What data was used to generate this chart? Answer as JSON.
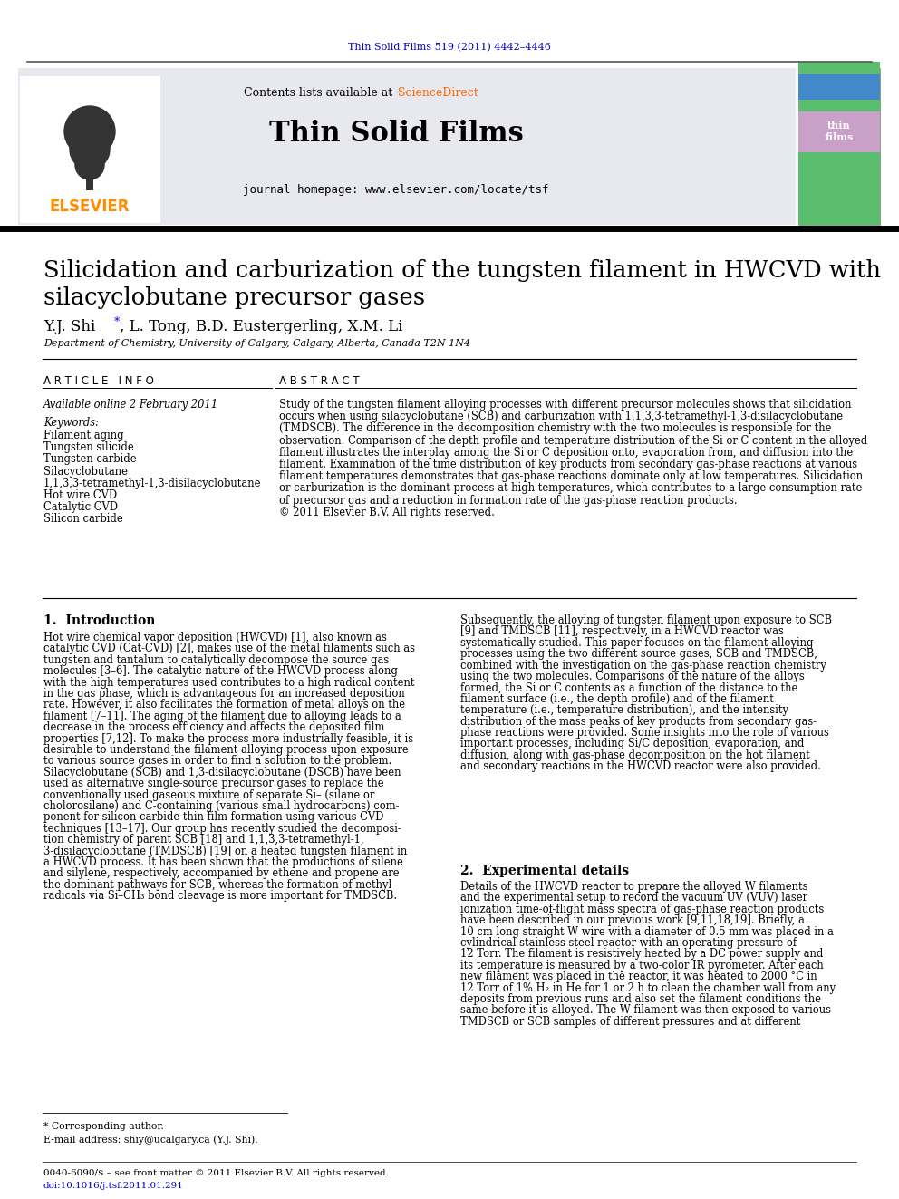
{
  "journal_ref": "Thin Solid Films 519 (2011) 4442–4446",
  "journal_ref_color": "#0000CC",
  "header_line_color": "#555555",
  "header_bg_color": "#E8E8EF",
  "header_title": "Thin Solid Films",
  "header_contents": "Contents lists available at ",
  "header_sciencedirect": "ScienceDirect",
  "header_sciencedirect_color": "#FF6600",
  "header_homepage": "journal homepage: www.elsevier.com/locate/tsf",
  "elsevier_color": "#FF8C00",
  "article_title": "Silicidation and carburization of the tungsten filament in HWCVD with\nsilacyclobutane precursor gases",
  "affiliation": "Department of Chemistry, University of Calgary, Calgary, Alberta, Canada T2N 1N4",
  "article_info_label": "A R T I C L E   I N F O",
  "abstract_label": "A B S T R A C T",
  "available_online": "Available online 2 February 2011",
  "keywords_label": "Keywords:",
  "keywords": [
    "Filament aging",
    "Tungsten silicide",
    "Tungsten carbide",
    "Silacyclobutane",
    "1,1,3,3-tetramethyl-1,3-disilacyclobutane",
    "Hot wire CVD",
    "Catalytic CVD",
    "Silicon carbide"
  ],
  "abstract_lines": [
    "Study of the tungsten filament alloying processes with different precursor molecules shows that silicidation",
    "occurs when using silacyclobutane (SCB) and carburization with 1,1,3,3-tetramethyl-1,3-disilacyclobutane",
    "(TMDSCB). The difference in the decomposition chemistry with the two molecules is responsible for the",
    "observation. Comparison of the depth profile and temperature distribution of the Si or C content in the alloyed",
    "filament illustrates the interplay among the Si or C deposition onto, evaporation from, and diffusion into the",
    "filament. Examination of the time distribution of key products from secondary gas-phase reactions at various",
    "filament temperatures demonstrates that gas-phase reactions dominate only at low temperatures. Silicidation",
    "or carburization is the dominant process at high temperatures, which contributes to a large consumption rate",
    "of precursor gas and a reduction in formation rate of the gas-phase reaction products.",
    "© 2011 Elsevier B.V. All rights reserved."
  ],
  "intro_heading": "1.  Introduction",
  "intro_lines1": [
    "Hot wire chemical vapor deposition (HWCVD) [1], also known as",
    "catalytic CVD (Cat-CVD) [2], makes use of the metal filaments such as",
    "tungsten and tantalum to catalytically decompose the source gas",
    "molecules [3–6]. The catalytic nature of the HWCVD process along",
    "with the high temperatures used contributes to a high radical content",
    "in the gas phase, which is advantageous for an increased deposition",
    "rate. However, it also facilitates the formation of metal alloys on the",
    "filament [7–11]. The aging of the filament due to alloying leads to a",
    "decrease in the process efficiency and affects the deposited film",
    "properties [7,12]. To make the process more industrially feasible, it is",
    "desirable to understand the filament alloying process upon exposure",
    "to various source gases in order to find a solution to the problem.",
    "Silacyclobutane (SCB) and 1,3-disilacyclobutane (DSCB) have been",
    "used as alternative single-source precursor gases to replace the",
    "conventionally used gaseous mixture of separate Si– (silane or",
    "cholorosilane) and C-containing (various small hydrocarbons) com-",
    "ponent for silicon carbide thin film formation using various CVD",
    "techniques [13–17]. Our group has recently studied the decomposi-",
    "tion chemistry of parent SCB [18] and 1,1,3,3-tetramethyl-1,",
    "3-disilacyclobutane (TMDSCB) [19] on a heated tungsten filament in",
    "a HWCVD process. It has been shown that the productions of silene",
    "and silylene, respectively, accompanied by ethene and propene are",
    "the dominant pathways for SCB, whereas the formation of methyl",
    "radicals via Si–CH₃ bond cleavage is more important for TMDSCB."
  ],
  "intro_lines2": [
    "Subsequently, the alloying of tungsten filament upon exposure to SCB",
    "[9] and TMDSCB [11], respectively, in a HWCVD reactor was",
    "systematically studied. This paper focuses on the filament alloying",
    "processes using the two different source gases, SCB and TMDSCB,",
    "combined with the investigation on the gas-phase reaction chemistry",
    "using the two molecules. Comparisons of the nature of the alloys",
    "formed, the Si or C contents as a function of the distance to the",
    "filament surface (i.e., the depth profile) and of the filament",
    "temperature (i.e., temperature distribution), and the intensity",
    "distribution of the mass peaks of key products from secondary gas-",
    "phase reactions were provided. Some insights into the role of various",
    "important processes, including Si/C deposition, evaporation, and",
    "diffusion, along with gas-phase decomposition on the hot filament",
    "and secondary reactions in the HWCVD reactor were also provided."
  ],
  "exp_heading": "2.  Experimental details",
  "exp_lines2": [
    "Details of the HWCVD reactor to prepare the alloyed W filaments",
    "and the experimental setup to record the vacuum UV (VUV) laser",
    "ionization time-of-flight mass spectra of gas-phase reaction products",
    "have been described in our previous work [9,11,18,19]. Briefly, a",
    "10 cm long straight W wire with a diameter of 0.5 mm was placed in a",
    "cylindrical stainless steel reactor with an operating pressure of",
    "12 Torr. The filament is resistively heated by a DC power supply and",
    "its temperature is measured by a two-color IR pyrometer. After each",
    "new filament was placed in the reactor, it was heated to 2000 °C in",
    "12 Torr of 1% H₂ in He for 1 or 2 h to clean the chamber wall from any",
    "deposits from previous runs and also set the filament conditions the",
    "same before it is alloyed. The W filament was then exposed to various",
    "TMDSCB or SCB samples of different pressures and at different"
  ],
  "footnote_star": "* Corresponding author.",
  "footnote_email": "E-mail address: shiy@ucalgary.ca (Y.J. Shi).",
  "footer_text1": "0040-6090/$ – see front matter © 2011 Elsevier B.V. All rights reserved.",
  "footer_text2": "doi:10.1016/j.tsf.2011.01.291",
  "bg_color": "#FFFFFF",
  "text_color": "#000000",
  "link_color": "#0000CC"
}
